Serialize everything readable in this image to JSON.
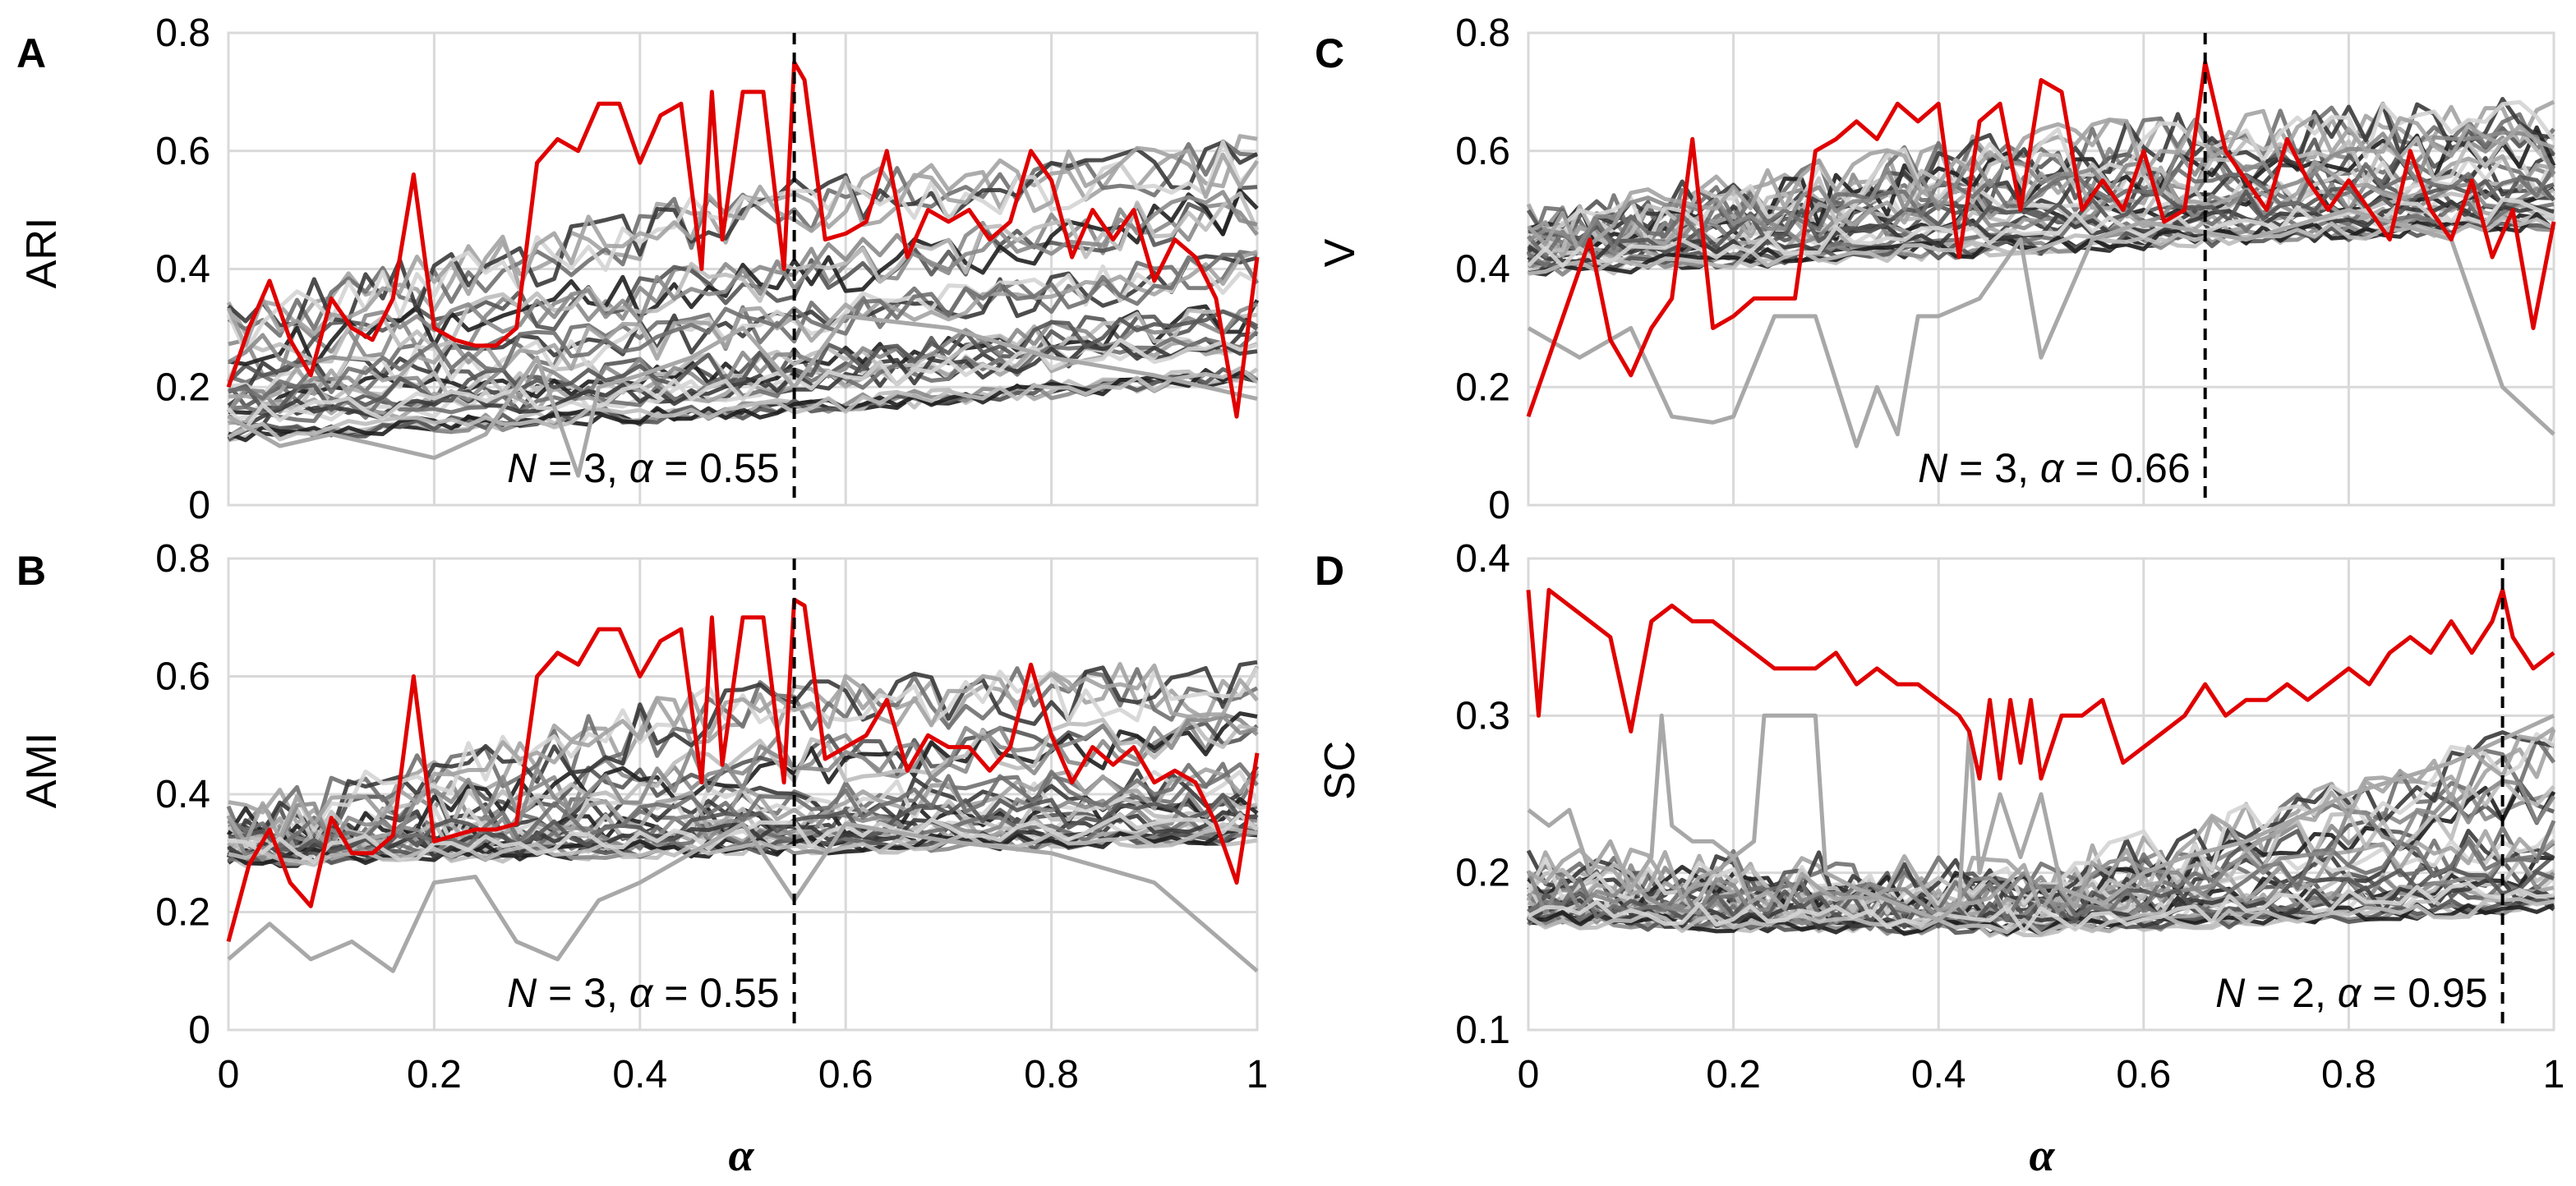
{
  "chart_data": [
    {
      "panel": "A",
      "type": "line",
      "ylabel": "ARI",
      "xlabel": "",
      "xlim": [
        0,
        1
      ],
      "ylim": [
        0,
        0.8
      ],
      "xticks": [
        "0",
        "0.2",
        "0.4",
        "0.6",
        "0.8",
        "1"
      ],
      "yticks": [
        "0",
        "0.2",
        "0.4",
        "0.6",
        "0.8"
      ],
      "show_xticks": false,
      "grid": true,
      "refline_x": 0.55,
      "annotation": {
        "n_label": "N",
        "n_value": "3",
        "alpha_label": "α",
        "alpha_value": "0.55"
      },
      "highlight_color": "#e00000",
      "highlight_series": {
        "x": [
          0,
          0.02,
          0.04,
          0.06,
          0.08,
          0.1,
          0.12,
          0.14,
          0.16,
          0.18,
          0.2,
          0.22,
          0.24,
          0.26,
          0.28,
          0.3,
          0.32,
          0.34,
          0.36,
          0.38,
          0.4,
          0.42,
          0.44,
          0.46,
          0.47,
          0.48,
          0.5,
          0.52,
          0.54,
          0.55,
          0.56,
          0.58,
          0.6,
          0.62,
          0.64,
          0.66,
          0.68,
          0.7,
          0.72,
          0.74,
          0.76,
          0.78,
          0.8,
          0.82,
          0.84,
          0.86,
          0.88,
          0.9,
          0.92,
          0.94,
          0.96,
          0.98,
          1
        ],
        "values": [
          0.2,
          0.3,
          0.38,
          0.28,
          0.22,
          0.35,
          0.3,
          0.28,
          0.35,
          0.56,
          0.3,
          0.28,
          0.27,
          0.27,
          0.3,
          0.58,
          0.62,
          0.6,
          0.68,
          0.68,
          0.58,
          0.66,
          0.68,
          0.4,
          0.7,
          0.45,
          0.7,
          0.7,
          0.4,
          0.75,
          0.72,
          0.45,
          0.46,
          0.48,
          0.6,
          0.42,
          0.5,
          0.48,
          0.5,
          0.45,
          0.48,
          0.6,
          0.55,
          0.42,
          0.5,
          0.45,
          0.5,
          0.38,
          0.45,
          0.42,
          0.35,
          0.15,
          0.42
        ]
      },
      "gray_bands": [
        [
          0.12,
          0.16,
          0.22
        ],
        [
          0.15,
          0.2,
          0.28
        ],
        [
          0.18,
          0.23,
          0.32
        ],
        [
          0.2,
          0.3,
          0.4
        ],
        [
          0.25,
          0.38,
          0.5
        ],
        [
          0.3,
          0.5,
          0.58
        ]
      ],
      "outlier_series": {
        "x": [
          0,
          0.05,
          0.1,
          0.15,
          0.2,
          0.25,
          0.3,
          0.32,
          0.34,
          0.36,
          0.4,
          0.45,
          0.5,
          0.55,
          0.6,
          0.7,
          0.8,
          0.9,
          1
        ],
        "values": [
          0.15,
          0.1,
          0.12,
          0.1,
          0.08,
          0.12,
          0.25,
          0.15,
          0.05,
          0.2,
          0.22,
          0.25,
          0.3,
          0.2,
          0.32,
          0.3,
          0.25,
          0.22,
          0.18
        ]
      }
    },
    {
      "panel": "B",
      "type": "line",
      "ylabel": "AMI",
      "xlabel": "α",
      "xlim": [
        0,
        1
      ],
      "ylim": [
        0,
        0.8
      ],
      "xticks": [
        "0",
        "0.2",
        "0.4",
        "0.6",
        "0.8",
        "1"
      ],
      "yticks": [
        "0",
        "0.2",
        "0.4",
        "0.6",
        "0.8"
      ],
      "show_xticks": true,
      "grid": true,
      "refline_x": 0.55,
      "annotation": {
        "n_label": "N",
        "n_value": "3",
        "alpha_label": "α",
        "alpha_value": "0.55"
      },
      "highlight_color": "#e00000",
      "highlight_series": {
        "x": [
          0,
          0.02,
          0.04,
          0.06,
          0.08,
          0.1,
          0.12,
          0.14,
          0.16,
          0.18,
          0.2,
          0.22,
          0.24,
          0.26,
          0.28,
          0.3,
          0.32,
          0.34,
          0.36,
          0.38,
          0.4,
          0.42,
          0.44,
          0.46,
          0.47,
          0.48,
          0.5,
          0.52,
          0.54,
          0.55,
          0.56,
          0.58,
          0.6,
          0.62,
          0.64,
          0.66,
          0.68,
          0.7,
          0.72,
          0.74,
          0.76,
          0.78,
          0.8,
          0.82,
          0.84,
          0.86,
          0.88,
          0.9,
          0.92,
          0.94,
          0.96,
          0.98,
          1
        ],
        "values": [
          0.15,
          0.28,
          0.34,
          0.25,
          0.21,
          0.36,
          0.3,
          0.3,
          0.33,
          0.6,
          0.32,
          0.33,
          0.34,
          0.34,
          0.35,
          0.6,
          0.64,
          0.62,
          0.68,
          0.68,
          0.6,
          0.66,
          0.68,
          0.42,
          0.7,
          0.45,
          0.7,
          0.7,
          0.42,
          0.73,
          0.72,
          0.46,
          0.48,
          0.5,
          0.56,
          0.44,
          0.5,
          0.48,
          0.48,
          0.44,
          0.48,
          0.62,
          0.5,
          0.42,
          0.48,
          0.45,
          0.48,
          0.42,
          0.44,
          0.42,
          0.35,
          0.25,
          0.47
        ]
      },
      "gray_bands": [
        [
          0.29,
          0.31,
          0.33
        ],
        [
          0.3,
          0.33,
          0.35
        ],
        [
          0.31,
          0.35,
          0.38
        ],
        [
          0.32,
          0.38,
          0.42
        ],
        [
          0.33,
          0.45,
          0.5
        ],
        [
          0.34,
          0.55,
          0.58
        ]
      ],
      "outlier_series": {
        "x": [
          0,
          0.04,
          0.08,
          0.12,
          0.16,
          0.2,
          0.24,
          0.28,
          0.32,
          0.36,
          0.4,
          0.45,
          0.5,
          0.55,
          0.6,
          0.7,
          0.8,
          0.9,
          1
        ],
        "values": [
          0.12,
          0.18,
          0.12,
          0.15,
          0.1,
          0.25,
          0.26,
          0.15,
          0.12,
          0.22,
          0.25,
          0.3,
          0.35,
          0.22,
          0.35,
          0.32,
          0.3,
          0.25,
          0.1
        ]
      }
    },
    {
      "panel": "C",
      "type": "line",
      "ylabel": "V",
      "xlabel": "",
      "xlim": [
        0,
        1
      ],
      "ylim": [
        0,
        0.8
      ],
      "xticks": [
        "0",
        "0.2",
        "0.4",
        "0.6",
        "0.8",
        "1"
      ],
      "yticks": [
        "0",
        "0.2",
        "0.4",
        "0.6",
        "0.8"
      ],
      "show_xticks": false,
      "grid": true,
      "refline_x": 0.66,
      "annotation": {
        "n_label": "N",
        "n_value": "3",
        "alpha_label": "α",
        "alpha_value": "0.66"
      },
      "highlight_color": "#e00000",
      "highlight_series": {
        "x": [
          0,
          0.02,
          0.04,
          0.06,
          0.08,
          0.1,
          0.12,
          0.14,
          0.16,
          0.18,
          0.2,
          0.22,
          0.24,
          0.26,
          0.28,
          0.3,
          0.32,
          0.34,
          0.36,
          0.38,
          0.4,
          0.42,
          0.44,
          0.46,
          0.48,
          0.5,
          0.52,
          0.54,
          0.56,
          0.58,
          0.6,
          0.62,
          0.64,
          0.66,
          0.68,
          0.7,
          0.72,
          0.74,
          0.76,
          0.78,
          0.8,
          0.82,
          0.84,
          0.86,
          0.88,
          0.9,
          0.92,
          0.94,
          0.96,
          0.98,
          1
        ],
        "values": [
          0.15,
          0.25,
          0.35,
          0.45,
          0.28,
          0.22,
          0.3,
          0.35,
          0.62,
          0.3,
          0.32,
          0.35,
          0.35,
          0.35,
          0.6,
          0.62,
          0.65,
          0.62,
          0.68,
          0.65,
          0.68,
          0.42,
          0.65,
          0.68,
          0.5,
          0.72,
          0.7,
          0.5,
          0.55,
          0.5,
          0.6,
          0.48,
          0.5,
          0.75,
          0.6,
          0.55,
          0.5,
          0.62,
          0.55,
          0.5,
          0.55,
          0.5,
          0.45,
          0.6,
          0.5,
          0.45,
          0.55,
          0.42,
          0.5,
          0.3,
          0.48
        ]
      },
      "gray_bands": [
        [
          0.4,
          0.44,
          0.48
        ],
        [
          0.42,
          0.47,
          0.5
        ],
        [
          0.44,
          0.5,
          0.53
        ],
        [
          0.45,
          0.53,
          0.56
        ],
        [
          0.46,
          0.56,
          0.6
        ],
        [
          0.46,
          0.6,
          0.65
        ]
      ],
      "outlier_series": {
        "x": [
          0,
          0.05,
          0.1,
          0.14,
          0.18,
          0.2,
          0.24,
          0.28,
          0.32,
          0.34,
          0.36,
          0.38,
          0.4,
          0.44,
          0.48,
          0.5,
          0.55,
          0.6,
          0.7,
          0.8,
          0.9,
          0.95,
          1
        ],
        "values": [
          0.3,
          0.25,
          0.3,
          0.15,
          0.14,
          0.15,
          0.32,
          0.32,
          0.1,
          0.2,
          0.12,
          0.32,
          0.32,
          0.35,
          0.45,
          0.25,
          0.45,
          0.48,
          0.45,
          0.5,
          0.45,
          0.2,
          0.12
        ]
      }
    },
    {
      "panel": "D",
      "type": "line",
      "ylabel": "SC",
      "xlabel": "α",
      "xlim": [
        0,
        1
      ],
      "ylim": [
        0.1,
        0.4
      ],
      "xticks": [
        "0",
        "0.2",
        "0.4",
        "0.6",
        "0.8",
        "1"
      ],
      "yticks": [
        "0.1",
        "0.2",
        "0.3",
        "0.4"
      ],
      "show_xticks": true,
      "grid": true,
      "refline_x": 0.95,
      "annotation": {
        "n_label": "N",
        "n_value": "2",
        "alpha_label": "α",
        "alpha_value": "0.95"
      },
      "highlight_color": "#e00000",
      "highlight_series": {
        "x": [
          0,
          0.01,
          0.02,
          0.04,
          0.06,
          0.08,
          0.1,
          0.12,
          0.14,
          0.16,
          0.18,
          0.2,
          0.22,
          0.24,
          0.26,
          0.28,
          0.3,
          0.32,
          0.34,
          0.36,
          0.38,
          0.4,
          0.42,
          0.43,
          0.44,
          0.45,
          0.46,
          0.47,
          0.48,
          0.49,
          0.5,
          0.52,
          0.54,
          0.56,
          0.58,
          0.6,
          0.62,
          0.64,
          0.66,
          0.68,
          0.7,
          0.72,
          0.74,
          0.76,
          0.78,
          0.8,
          0.82,
          0.84,
          0.86,
          0.88,
          0.9,
          0.92,
          0.94,
          0.95,
          0.96,
          0.98,
          1
        ],
        "values": [
          0.38,
          0.3,
          0.38,
          0.37,
          0.36,
          0.35,
          0.29,
          0.36,
          0.37,
          0.36,
          0.36,
          0.35,
          0.34,
          0.33,
          0.33,
          0.33,
          0.34,
          0.32,
          0.33,
          0.32,
          0.32,
          0.31,
          0.3,
          0.29,
          0.26,
          0.31,
          0.26,
          0.31,
          0.27,
          0.31,
          0.26,
          0.3,
          0.3,
          0.31,
          0.27,
          0.28,
          0.29,
          0.3,
          0.32,
          0.3,
          0.31,
          0.31,
          0.32,
          0.31,
          0.32,
          0.33,
          0.32,
          0.34,
          0.35,
          0.34,
          0.36,
          0.34,
          0.36,
          0.38,
          0.35,
          0.33,
          0.34
        ]
      },
      "gray_bands": [
        [
          0.17,
          0.165,
          0.18
        ],
        [
          0.175,
          0.17,
          0.19
        ],
        [
          0.18,
          0.175,
          0.2
        ],
        [
          0.185,
          0.18,
          0.22
        ],
        [
          0.19,
          0.185,
          0.25
        ],
        [
          0.2,
          0.19,
          0.28
        ]
      ],
      "outlier_series": {
        "x": [
          0,
          0.02,
          0.04,
          0.06,
          0.08,
          0.1,
          0.12,
          0.13,
          0.14,
          0.16,
          0.18,
          0.2,
          0.22,
          0.23,
          0.26,
          0.28,
          0.29,
          0.32,
          0.36,
          0.4,
          0.42,
          0.43,
          0.44,
          0.46,
          0.48,
          0.5,
          0.52,
          0.56,
          0.6,
          0.64,
          0.7,
          0.8,
          0.9,
          1
        ],
        "values": [
          0.24,
          0.23,
          0.24,
          0.2,
          0.22,
          0.19,
          0.21,
          0.3,
          0.23,
          0.22,
          0.22,
          0.21,
          0.22,
          0.3,
          0.3,
          0.3,
          0.2,
          0.19,
          0.18,
          0.17,
          0.18,
          0.29,
          0.2,
          0.25,
          0.21,
          0.25,
          0.19,
          0.18,
          0.2,
          0.21,
          0.22,
          0.25,
          0.27,
          0.3
        ]
      }
    }
  ]
}
